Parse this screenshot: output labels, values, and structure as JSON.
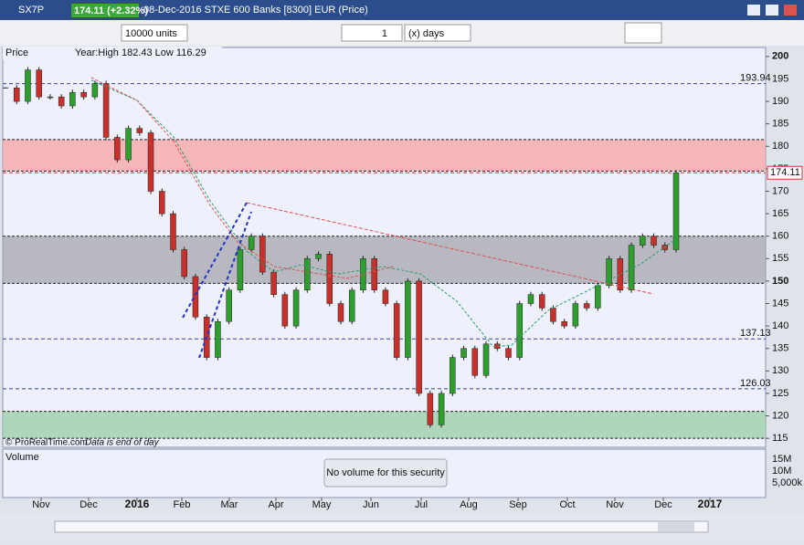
{
  "header": {
    "symbol": "SX7P",
    "price": "174.11 (+2.32%)",
    "description": "08-Dec-2016 STXE 600 Banks [8300] EUR (Price)"
  },
  "toolbar": {
    "units": "10000 units",
    "period_count": "1",
    "period_unit": "(x) days"
  },
  "chart_data": {
    "type": "candlestick",
    "panel_label": "Price",
    "year_range": "Year:High 182.43 Low 116.29",
    "values": [
      193,
      190,
      197,
      191,
      191,
      189,
      192,
      191,
      194,
      182,
      177,
      184,
      183,
      170,
      165,
      157,
      151,
      142,
      133,
      141,
      148,
      157,
      160,
      152,
      147,
      140,
      148,
      155,
      156,
      145,
      141,
      148,
      155,
      148,
      145,
      133,
      150,
      125,
      118,
      125,
      133,
      135,
      129,
      136,
      135,
      133,
      145,
      147,
      144,
      141,
      140,
      145,
      144,
      149,
      155,
      148,
      158,
      160,
      158,
      157,
      174.11
    ],
    "up_color": "#2e9e2e",
    "down_color": "#c8302b",
    "ylim": [
      113,
      202
    ],
    "yticks": [
      115,
      120,
      125,
      130,
      135,
      140,
      145,
      150,
      155,
      160,
      165,
      170,
      175,
      180,
      185,
      190,
      195,
      200
    ],
    "levels": [
      193.94,
      137.13,
      126.03
    ],
    "last": 174.11,
    "zones": [
      {
        "from": 174.5,
        "to": 181.5,
        "color": "#f6a9a9"
      },
      {
        "from": 149.5,
        "to": 160,
        "color": "#a9aab2"
      },
      {
        "from": 115,
        "to": 121,
        "color": "#9ccfaa"
      }
    ],
    "months": [
      "Nov",
      "Dec",
      "2016",
      "Feb",
      "Mar",
      "Apr",
      "May",
      "Jun",
      "Jul",
      "Aug",
      "Sep",
      "Oct",
      "Nov",
      "Dec",
      "2017"
    ],
    "copyright": "© ProRealTime.com",
    "data_note": "Data is end of day"
  },
  "volume": {
    "label": "Volume",
    "message": "No volume for this security",
    "ticks": [
      "15M",
      "10M",
      "5,000k"
    ]
  }
}
